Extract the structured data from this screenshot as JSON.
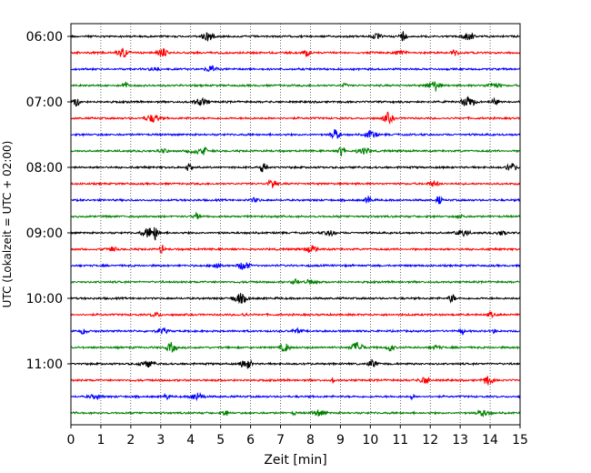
{
  "chart_data": {
    "type": "line",
    "title": "",
    "xlabel": "Zeit  [min]",
    "ylabel": "UTC (Lokalzeit = UTC + 02:00)",
    "xlim": [
      0,
      15
    ],
    "x_ticks": [
      "0",
      "1",
      "2",
      "3",
      "4",
      "5",
      "6",
      "7",
      "8",
      "9",
      "10",
      "11",
      "12",
      "13",
      "14",
      "15"
    ],
    "y_ticks": [
      "06:00",
      "07:00",
      "08:00",
      "09:00",
      "10:00",
      "11:00"
    ],
    "grid": "vertical dotted lines at each minute",
    "trace_interval_minutes": 15,
    "trace_colors_cycle": [
      "#000000",
      "#ff0000",
      "#0000ff",
      "#008000"
    ],
    "series": [
      {
        "start": "06:00",
        "color": "#000000"
      },
      {
        "start": "06:15",
        "color": "#ff0000"
      },
      {
        "start": "06:30",
        "color": "#0000ff"
      },
      {
        "start": "06:45",
        "color": "#008000"
      },
      {
        "start": "07:00",
        "color": "#000000"
      },
      {
        "start": "07:15",
        "color": "#ff0000"
      },
      {
        "start": "07:30",
        "color": "#0000ff"
      },
      {
        "start": "07:45",
        "color": "#008000"
      },
      {
        "start": "08:00",
        "color": "#000000"
      },
      {
        "start": "08:15",
        "color": "#ff0000"
      },
      {
        "start": "08:30",
        "color": "#0000ff"
      },
      {
        "start": "08:45",
        "color": "#008000"
      },
      {
        "start": "09:00",
        "color": "#000000"
      },
      {
        "start": "09:15",
        "color": "#ff0000"
      },
      {
        "start": "09:30",
        "color": "#0000ff"
      },
      {
        "start": "09:45",
        "color": "#008000"
      },
      {
        "start": "10:00",
        "color": "#000000"
      },
      {
        "start": "10:15",
        "color": "#ff0000"
      },
      {
        "start": "10:30",
        "color": "#0000ff"
      },
      {
        "start": "10:45",
        "color": "#008000"
      },
      {
        "start": "11:00",
        "color": "#000000"
      },
      {
        "start": "11:15",
        "color": "#ff0000"
      },
      {
        "start": "11:30",
        "color": "#0000ff"
      },
      {
        "start": "11:45",
        "color": "#008000"
      }
    ]
  }
}
